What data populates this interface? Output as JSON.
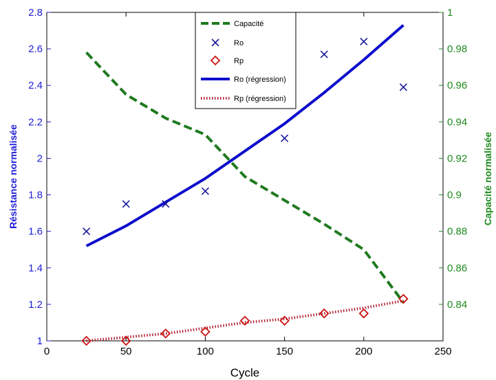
{
  "chart_data": {
    "type": "line",
    "xlabel": "Cycle",
    "ylabel_left": "Résistance normalisée",
    "ylabel_right": "Capacité normalisée",
    "xlim": [
      0,
      250
    ],
    "ylim_left": [
      1,
      2.8
    ],
    "ylim_right": [
      0.82,
      1.0
    ],
    "x_ticks": [
      "0",
      "50",
      "100",
      "150",
      "200",
      "250"
    ],
    "y_left_ticks": [
      "1",
      "1.2",
      "1.4",
      "1.6",
      "1.8",
      "2",
      "2.2",
      "2.4",
      "2.6",
      "2.8"
    ],
    "y_right_ticks": [
      "0.84",
      "0.86",
      "0.88",
      "0.9",
      "0.92",
      "0.94",
      "0.96",
      "0.98",
      "1"
    ],
    "grid": false,
    "legend_position": "top-center",
    "colors": {
      "left_axis": "#1f1fd6",
      "right_axis": "#1e8a1e",
      "capacity": "#1e7a1e",
      "ro": "#1a1a9a",
      "ro_fit": "#0d0dcc",
      "rp": "#cc1111",
      "rp_fit": "#b02030"
    },
    "series": [
      {
        "name": "Capacité",
        "axis": "right",
        "style": "dashed-line",
        "x": [
          25,
          50,
          75,
          100,
          125,
          150,
          175,
          200,
          225
        ],
        "y": [
          0.978,
          0.955,
          0.942,
          0.933,
          0.91,
          0.897,
          0.884,
          0.87,
          0.841
        ]
      },
      {
        "name": "Ro",
        "axis": "left",
        "style": "x-marker",
        "x": [
          25,
          50,
          75,
          100,
          150,
          175,
          200,
          225
        ],
        "y": [
          1.6,
          1.75,
          1.75,
          1.82,
          2.11,
          2.57,
          2.64,
          2.39
        ]
      },
      {
        "name": "Rp",
        "axis": "left",
        "style": "diamond-marker",
        "x": [
          25,
          50,
          75,
          100,
          125,
          150,
          175,
          200,
          225
        ],
        "y": [
          1.0,
          1.0,
          1.04,
          1.05,
          1.11,
          1.11,
          1.15,
          1.15,
          1.23
        ]
      },
      {
        "name": "Ro (régression)",
        "axis": "left",
        "style": "solid-line",
        "x": [
          25,
          50,
          75,
          100,
          125,
          150,
          175,
          200,
          225
        ],
        "y": [
          1.52,
          1.63,
          1.76,
          1.89,
          2.04,
          2.19,
          2.36,
          2.54,
          2.73
        ]
      },
      {
        "name": "Rp (régression)",
        "axis": "left",
        "style": "dotted-line",
        "x": [
          25,
          50,
          75,
          100,
          125,
          150,
          175,
          200,
          225
        ],
        "y": [
          1.0,
          1.02,
          1.04,
          1.07,
          1.1,
          1.12,
          1.15,
          1.18,
          1.22
        ]
      }
    ]
  }
}
